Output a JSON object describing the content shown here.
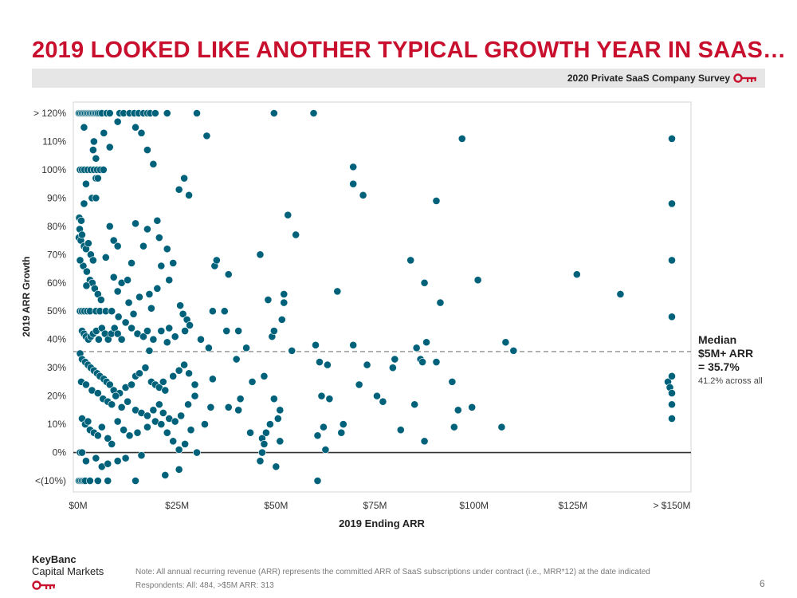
{
  "title": "2019 LOOKED LIKE ANOTHER TYPICAL GROWTH YEAR IN SAAS…",
  "survey_label": "2020 Private SaaS Company Survey",
  "median_note": {
    "line1": "Median",
    "line2": "$5M+ ARR",
    "line3": "= 35.7%",
    "sub": "41.2% across all"
  },
  "brand": {
    "line1": "KeyBanc",
    "line2": "Capital Markets"
  },
  "footnote": {
    "line1": "Note: All annual recurring revenue (ARR) represents the committed ARR of SaaS subscriptions under contract (i.e., MRR*12) at the date indicated",
    "line2": "Respondents: All: 484, >$5M ARR: 313"
  },
  "page_number": "6",
  "colors": {
    "accent": "#c8102e",
    "point": "#00627a",
    "median_line": "#777777"
  },
  "chart_data": {
    "type": "scatter",
    "xlabel": "2019 Ending ARR",
    "ylabel": "2019 ARR Growth",
    "xlim": [
      -2,
      152
    ],
    "ylim": [
      -10,
      120
    ],
    "x_ticks": [
      {
        "value": 0,
        "label": "$0M"
      },
      {
        "value": 25,
        "label": "$25M"
      },
      {
        "value": 50,
        "label": "$50M"
      },
      {
        "value": 75,
        "label": "$75M"
      },
      {
        "value": 100,
        "label": "$100M"
      },
      {
        "value": 125,
        "label": "$125M"
      },
      {
        "value": 150,
        "label": "> $150M"
      }
    ],
    "y_ticks": [
      {
        "value": 120,
        "label": "> 120%"
      },
      {
        "value": 110,
        "label": "110%"
      },
      {
        "value": 100,
        "label": "100%"
      },
      {
        "value": 90,
        "label": "90%"
      },
      {
        "value": 80,
        "label": "80%"
      },
      {
        "value": 70,
        "label": "70%"
      },
      {
        "value": 60,
        "label": "60%"
      },
      {
        "value": 50,
        "label": "50%"
      },
      {
        "value": 40,
        "label": "40%"
      },
      {
        "value": 30,
        "label": "30%"
      },
      {
        "value": 20,
        "label": "20%"
      },
      {
        "value": 10,
        "label": "10%"
      },
      {
        "value": 0,
        "label": "0%"
      },
      {
        "value": -10,
        "label": "<(10%)"
      }
    ],
    "median_y": 35.7,
    "grid": false,
    "points": [
      [
        0.2,
        120
      ],
      [
        0.6,
        120
      ],
      [
        1.0,
        120
      ],
      [
        1.4,
        120
      ],
      [
        1.8,
        120
      ],
      [
        2.2,
        120
      ],
      [
        2.6,
        120
      ],
      [
        3.0,
        120
      ],
      [
        3.4,
        120
      ],
      [
        3.8,
        120
      ],
      [
        4.2,
        120
      ],
      [
        4.6,
        120
      ],
      [
        5.0,
        120
      ],
      [
        5.5,
        120
      ],
      [
        6.0,
        120
      ],
      [
        7.2,
        120
      ],
      [
        8.0,
        120
      ],
      [
        10.5,
        120
      ],
      [
        11.5,
        120
      ],
      [
        13.0,
        120
      ],
      [
        14.2,
        120
      ],
      [
        15.3,
        120
      ],
      [
        16.5,
        120
      ],
      [
        17.5,
        120
      ],
      [
        18.2,
        120
      ],
      [
        19.5,
        120
      ],
      [
        22.5,
        120
      ],
      [
        30.0,
        120
      ],
      [
        49.5,
        120
      ],
      [
        59.5,
        120
      ],
      [
        0.2,
        -10
      ],
      [
        0.6,
        -10
      ],
      [
        1.0,
        -10
      ],
      [
        1.4,
        -10
      ],
      [
        1.8,
        -10
      ],
      [
        3.0,
        -10
      ],
      [
        5.0,
        -10
      ],
      [
        7.5,
        -10
      ],
      [
        14.5,
        -10
      ],
      [
        60.5,
        -10
      ],
      [
        0.5,
        100
      ],
      [
        1.0,
        100
      ],
      [
        1.6,
        100
      ],
      [
        2.4,
        100
      ],
      [
        3.2,
        100
      ],
      [
        4.0,
        100
      ],
      [
        4.8,
        100
      ],
      [
        5.6,
        100
      ],
      [
        6.4,
        100
      ],
      [
        2.0,
        95
      ],
      [
        4.5,
        97
      ],
      [
        5.0,
        97
      ],
      [
        3.5,
        90
      ],
      [
        4.5,
        90
      ],
      [
        1.5,
        88
      ],
      [
        1.5,
        115
      ],
      [
        4.0,
        110
      ],
      [
        6.5,
        113
      ],
      [
        8.0,
        108
      ],
      [
        3.8,
        107
      ],
      [
        4.5,
        104
      ],
      [
        10.0,
        117
      ],
      [
        14.5,
        115
      ],
      [
        16.0,
        113
      ],
      [
        17.5,
        107
      ],
      [
        19.0,
        102
      ],
      [
        25.5,
        93
      ],
      [
        26.8,
        97
      ],
      [
        28.0,
        91
      ],
      [
        32.5,
        112
      ],
      [
        0.3,
        83
      ],
      [
        0.8,
        82
      ],
      [
        0.4,
        79
      ],
      [
        0.2,
        76
      ],
      [
        0.7,
        75
      ],
      [
        1.0,
        77
      ],
      [
        1.5,
        73
      ],
      [
        2.0,
        72
      ],
      [
        2.6,
        74
      ],
      [
        3.2,
        70
      ],
      [
        3.8,
        68
      ],
      [
        1.3,
        66
      ],
      [
        2.2,
        64
      ],
      [
        3.0,
        61
      ],
      [
        3.6,
        60
      ],
      [
        4.2,
        58
      ],
      [
        5.0,
        56
      ],
      [
        5.8,
        54
      ],
      [
        2.1,
        59
      ],
      [
        0.5,
        68
      ],
      [
        8.0,
        80
      ],
      [
        9.0,
        75
      ],
      [
        10.0,
        73
      ],
      [
        14.5,
        81
      ],
      [
        16.5,
        73
      ],
      [
        17.5,
        79
      ],
      [
        20.0,
        82
      ],
      [
        20.5,
        76
      ],
      [
        22.5,
        72
      ],
      [
        24.0,
        67
      ],
      [
        21.0,
        66
      ],
      [
        20.0,
        58
      ],
      [
        23.0,
        61
      ],
      [
        13.5,
        67
      ],
      [
        7.0,
        69
      ],
      [
        9.0,
        62
      ],
      [
        11.0,
        60
      ],
      [
        12.5,
        61
      ],
      [
        10.0,
        57
      ],
      [
        15.5,
        55
      ],
      [
        18.0,
        56
      ],
      [
        12.8,
        53
      ],
      [
        18.5,
        51
      ],
      [
        14.0,
        49
      ],
      [
        0.5,
        50
      ],
      [
        1.0,
        50
      ],
      [
        1.6,
        50
      ],
      [
        2.3,
        50
      ],
      [
        3.0,
        50
      ],
      [
        4.5,
        50
      ],
      [
        5.5,
        50
      ],
      [
        7.0,
        50
      ],
      [
        8.5,
        50
      ],
      [
        10.2,
        48
      ],
      [
        1.0,
        43
      ],
      [
        1.5,
        42
      ],
      [
        2.0,
        41
      ],
      [
        2.6,
        40
      ],
      [
        3.2,
        41
      ],
      [
        3.8,
        42
      ],
      [
        4.6,
        43
      ],
      [
        5.2,
        40
      ],
      [
        6.0,
        44
      ],
      [
        6.8,
        42
      ],
      [
        7.6,
        40
      ],
      [
        8.4,
        42
      ],
      [
        9.2,
        44
      ],
      [
        10.0,
        42
      ],
      [
        11.0,
        40
      ],
      [
        12.0,
        46
      ],
      [
        13.5,
        44
      ],
      [
        15.0,
        42
      ],
      [
        16.5,
        41
      ],
      [
        17.5,
        43
      ],
      [
        19.0,
        40
      ],
      [
        21.0,
        43
      ],
      [
        23.0,
        44
      ],
      [
        24.5,
        41
      ],
      [
        25.8,
        52
      ],
      [
        26.5,
        49
      ],
      [
        27.5,
        47
      ],
      [
        28.2,
        45
      ],
      [
        27.0,
        43
      ],
      [
        22.5,
        39
      ],
      [
        18.0,
        36
      ],
      [
        0.5,
        35
      ],
      [
        1.0,
        33
      ],
      [
        1.8,
        32
      ],
      [
        2.5,
        31
      ],
      [
        3.2,
        30
      ],
      [
        4.0,
        29
      ],
      [
        4.8,
        28
      ],
      [
        5.5,
        27
      ],
      [
        6.5,
        26
      ],
      [
        7.2,
        25
      ],
      [
        8.0,
        24
      ],
      [
        9.0,
        22
      ],
      [
        10.5,
        21
      ],
      [
        12.0,
        23
      ],
      [
        13.5,
        24
      ],
      [
        14.5,
        27
      ],
      [
        15.5,
        28
      ],
      [
        17.0,
        30
      ],
      [
        18.5,
        25
      ],
      [
        19.5,
        24
      ],
      [
        20.5,
        23
      ],
      [
        21.5,
        25
      ],
      [
        22.0,
        22
      ],
      [
        24.0,
        27
      ],
      [
        25.5,
        29
      ],
      [
        26.8,
        31
      ],
      [
        28.0,
        28
      ],
      [
        29.5,
        24
      ],
      [
        0.8,
        25
      ],
      [
        2.0,
        24
      ],
      [
        3.5,
        22
      ],
      [
        5.0,
        21
      ],
      [
        6.3,
        19
      ],
      [
        7.5,
        18
      ],
      [
        8.5,
        17
      ],
      [
        9.5,
        20
      ],
      [
        11.0,
        16
      ],
      [
        12.5,
        18
      ],
      [
        14.5,
        15
      ],
      [
        16.0,
        14
      ],
      [
        17.5,
        13
      ],
      [
        19.0,
        15
      ],
      [
        20.5,
        17
      ],
      [
        21.5,
        14
      ],
      [
        23.0,
        12
      ],
      [
        24.5,
        11
      ],
      [
        26.0,
        13
      ],
      [
        27.8,
        17
      ],
      [
        29.5,
        20
      ],
      [
        1.0,
        12
      ],
      [
        1.8,
        10
      ],
      [
        2.5,
        11
      ],
      [
        3.0,
        8
      ],
      [
        4.0,
        7
      ],
      [
        5.0,
        6
      ],
      [
        6.0,
        9
      ],
      [
        7.5,
        5
      ],
      [
        8.5,
        3
      ],
      [
        10.0,
        11
      ],
      [
        11.5,
        8
      ],
      [
        13.0,
        6
      ],
      [
        15.0,
        7
      ],
      [
        17.5,
        9
      ],
      [
        19.5,
        11
      ],
      [
        21.0,
        10
      ],
      [
        22.5,
        7
      ],
      [
        24.0,
        4
      ],
      [
        25.5,
        1
      ],
      [
        27.0,
        3
      ],
      [
        28.5,
        8
      ],
      [
        0.5,
        0
      ],
      [
        1.0,
        0
      ],
      [
        2.0,
        -3
      ],
      [
        4.5,
        -2
      ],
      [
        6.0,
        -5
      ],
      [
        7.5,
        -4
      ],
      [
        10.0,
        -3
      ],
      [
        12.0,
        -2
      ],
      [
        16.0,
        -1
      ],
      [
        22.0,
        -8
      ],
      [
        25.5,
        -6
      ],
      [
        30.0,
        0
      ],
      [
        31.0,
        40
      ],
      [
        32.0,
        10
      ],
      [
        33.0,
        37
      ],
      [
        34.0,
        26
      ],
      [
        34.5,
        66
      ],
      [
        35.0,
        68
      ],
      [
        34.0,
        50
      ],
      [
        37.0,
        50
      ],
      [
        38.0,
        63
      ],
      [
        37.5,
        43
      ],
      [
        33.5,
        16
      ],
      [
        38.0,
        16
      ],
      [
        40.5,
        43
      ],
      [
        40.0,
        33
      ],
      [
        42.5,
        37
      ],
      [
        43.5,
        7
      ],
      [
        44.0,
        25
      ],
      [
        41.0,
        19
      ],
      [
        40.5,
        15
      ],
      [
        46.0,
        70
      ],
      [
        46.5,
        5
      ],
      [
        47.0,
        27
      ],
      [
        46.0,
        -3
      ],
      [
        46.5,
        0
      ],
      [
        47.0,
        3
      ],
      [
        47.5,
        7
      ],
      [
        48.0,
        54
      ],
      [
        48.5,
        10
      ],
      [
        49.0,
        41
      ],
      [
        49.5,
        19
      ],
      [
        49.5,
        43
      ],
      [
        50.0,
        -5
      ],
      [
        50.5,
        12
      ],
      [
        51.0,
        4
      ],
      [
        51.0,
        15
      ],
      [
        51.5,
        47
      ],
      [
        52.0,
        56
      ],
      [
        52.0,
        53
      ],
      [
        53.0,
        84
      ],
      [
        54.0,
        36
      ],
      [
        55.0,
        77
      ],
      [
        60.0,
        38
      ],
      [
        60.5,
        6
      ],
      [
        61.0,
        32
      ],
      [
        61.5,
        20
      ],
      [
        62.0,
        9
      ],
      [
        62.5,
        1
      ],
      [
        63.0,
        31
      ],
      [
        63.5,
        19
      ],
      [
        65.5,
        57
      ],
      [
        66.5,
        7
      ],
      [
        67.0,
        10
      ],
      [
        69.5,
        101
      ],
      [
        69.5,
        95
      ],
      [
        69.5,
        38
      ],
      [
        71.0,
        24
      ],
      [
        72.0,
        91
      ],
      [
        73.0,
        31
      ],
      [
        75.5,
        20
      ],
      [
        77.0,
        18
      ],
      [
        79.5,
        30
      ],
      [
        80.0,
        33
      ],
      [
        81.5,
        8
      ],
      [
        84.0,
        68
      ],
      [
        85.0,
        17
      ],
      [
        85.5,
        37
      ],
      [
        86.5,
        33
      ],
      [
        87.5,
        4
      ],
      [
        87.5,
        60
      ],
      [
        88.0,
        39
      ],
      [
        87.0,
        32
      ],
      [
        90.5,
        89
      ],
      [
        90.5,
        32
      ],
      [
        91.5,
        53
      ],
      [
        94.5,
        25
      ],
      [
        95.0,
        9
      ],
      [
        96.0,
        15
      ],
      [
        97.0,
        111
      ],
      [
        99.5,
        16
      ],
      [
        101.0,
        61
      ],
      [
        107.0,
        9
      ],
      [
        108.0,
        39
      ],
      [
        110.0,
        36
      ],
      [
        126.0,
        63
      ],
      [
        137.0,
        56
      ],
      [
        149.0,
        25
      ],
      [
        149.5,
        23
      ],
      [
        150.0,
        27
      ],
      [
        150.0,
        21
      ],
      [
        150.0,
        17
      ],
      [
        150.0,
        12
      ],
      [
        150.0,
        48
      ],
      [
        150.0,
        68
      ],
      [
        150.0,
        88
      ],
      [
        150.0,
        111
      ]
    ]
  }
}
